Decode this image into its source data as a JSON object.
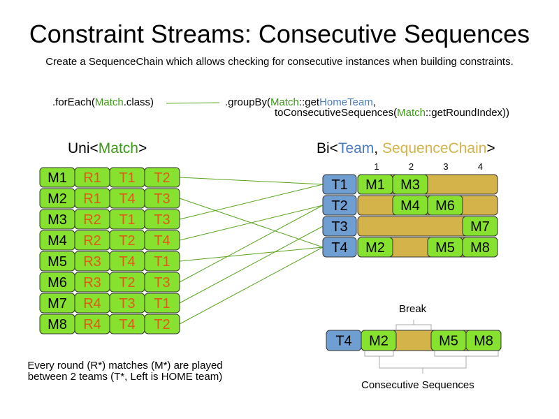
{
  "title": "Constraint Streams: Consecutive Sequences",
  "subtitle": "Create a SequenceChain which allows checking for consecutive instances when building constraints.",
  "code": {
    "forEach_pre": ".forEach(",
    "forEach_cls": "Match",
    "forEach_post": ".class)",
    "groupBy_pre": ".groupBy(",
    "groupBy_cls": "Match",
    "groupBy_mid": "::get",
    "groupBy_fn": "HomeTeam",
    "groupBy_post": ",",
    "line2_pre": "toConsecutiveSequences(",
    "line2_cls": "Match",
    "line2_post": "::getRoundIndex))"
  },
  "uni": {
    "pre": "Uni<",
    "type": "Match",
    "post": ">"
  },
  "bi": {
    "pre": "Bi<",
    "type1": "Team",
    "sep": ", ",
    "type2": "SequenceChain",
    "post": ">"
  },
  "colors": {
    "match": "#86e22f",
    "team": "#6f9fd2",
    "chain": "#d4b44a",
    "round_text": "#e0591a",
    "line": "#5aa520"
  },
  "matches": [
    {
      "id": "M1",
      "round": "R1",
      "home": "T1",
      "away": "T2"
    },
    {
      "id": "M2",
      "round": "R1",
      "home": "T4",
      "away": "T3"
    },
    {
      "id": "M3",
      "round": "R2",
      "home": "T1",
      "away": "T3"
    },
    {
      "id": "M4",
      "round": "R2",
      "home": "T2",
      "away": "T4"
    },
    {
      "id": "M5",
      "round": "R3",
      "home": "T4",
      "away": "T1"
    },
    {
      "id": "M6",
      "round": "R3",
      "home": "T2",
      "away": "T3"
    },
    {
      "id": "M7",
      "round": "R4",
      "home": "T3",
      "away": "T1"
    },
    {
      "id": "M8",
      "round": "R4",
      "home": "T4",
      "away": "T2"
    }
  ],
  "rounds": [
    "1",
    "2",
    "3",
    "4"
  ],
  "teams": [
    {
      "id": "T1",
      "slots": [
        "M1",
        "M3",
        "",
        ""
      ]
    },
    {
      "id": "T2",
      "slots": [
        "",
        "M4",
        "M6",
        ""
      ]
    },
    {
      "id": "T3",
      "slots": [
        "",
        "",
        "",
        "M7"
      ]
    },
    {
      "id": "T4",
      "slots": [
        "M2",
        "",
        "M5",
        "M8"
      ]
    }
  ],
  "example": {
    "team": "T4",
    "slots": [
      "M2",
      "",
      "M5",
      "M8"
    ],
    "break_label": "Break",
    "sequences_label": "Consecutive Sequences"
  },
  "footnote": [
    "Every round (R*) matches (M*) are played",
    "between 2 teams (T*, Left is HOME team)"
  ]
}
